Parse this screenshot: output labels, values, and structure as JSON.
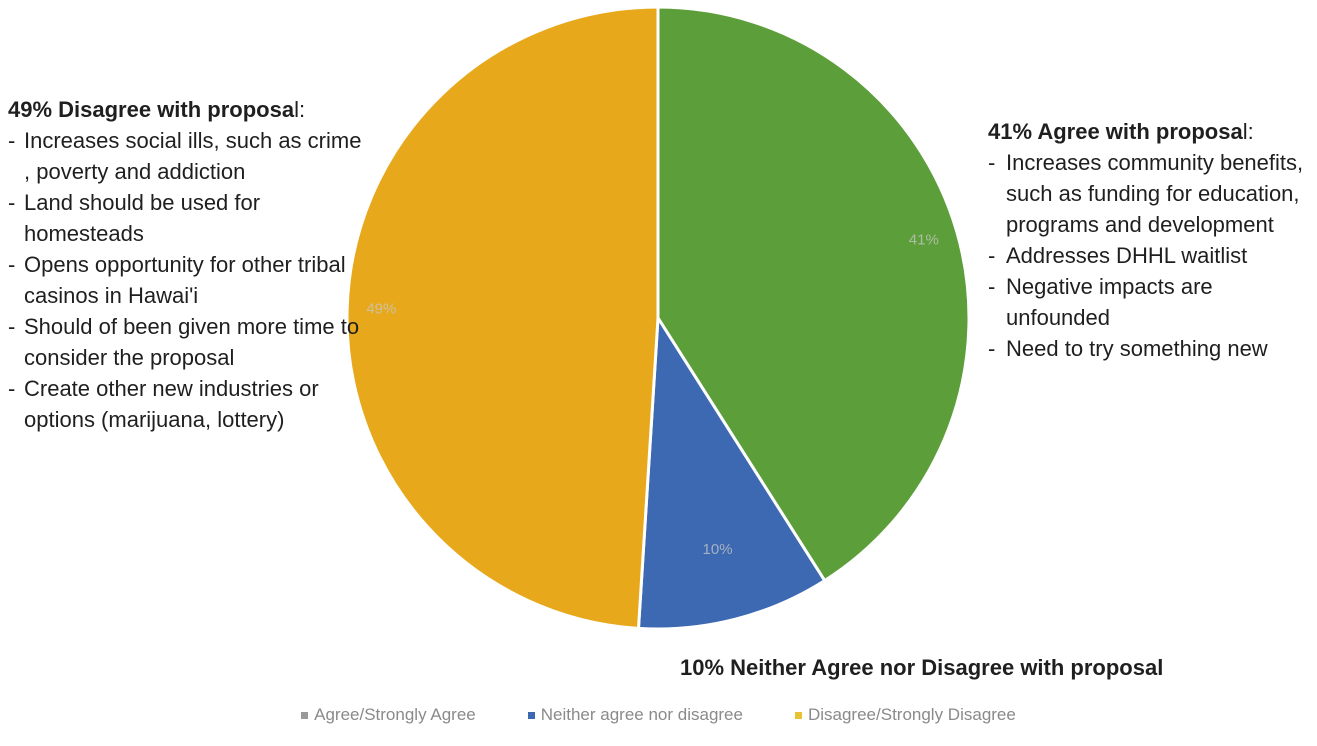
{
  "chart_data": {
    "type": "pie",
    "title": "",
    "slices": [
      {
        "label": "Agree/Strongly Agree",
        "value": 41,
        "data_label": "41%",
        "color": "#5c9e3a"
      },
      {
        "label": "Neither agree nor disagree",
        "value": 10,
        "data_label": "10%",
        "color": "#3c69b1"
      },
      {
        "label": "Disagree/Strongly Disagree",
        "value": 49,
        "data_label": "49%",
        "color": "#e7a81c"
      }
    ],
    "legend": {
      "placement": "bottom",
      "items": [
        {
          "label": "Agree/Strongly Agree",
          "color": "#9a9a9a"
        },
        {
          "label": "Neither agree nor disagree",
          "color": "#3c69b1"
        },
        {
          "label": "Disagree/Strongly Disagree",
          "color": "#e7c232"
        }
      ]
    },
    "annotations": {
      "disagree": {
        "heading_bold": "49% Disagree with proposa",
        "heading_tail": "l:",
        "items": [
          "Increases social ills, such as crime , poverty and addiction",
          "Land should be used for homesteads",
          "Opens opportunity for other tribal casinos in Hawai'i",
          "Should of been given more time to consider the proposal",
          "Create other new industries or options (marijuana, lottery)"
        ]
      },
      "agree": {
        "heading_bold": "41% Agree with proposa",
        "heading_tail": "l:",
        "items": [
          "Increases community benefits, such as funding for education, programs and development",
          "Addresses DHHL waitlist",
          "Negative impacts are unfounded",
          "Need to try something new"
        ]
      },
      "neither": {
        "text": "10% Neither Agree nor Disagree with proposal"
      }
    }
  }
}
